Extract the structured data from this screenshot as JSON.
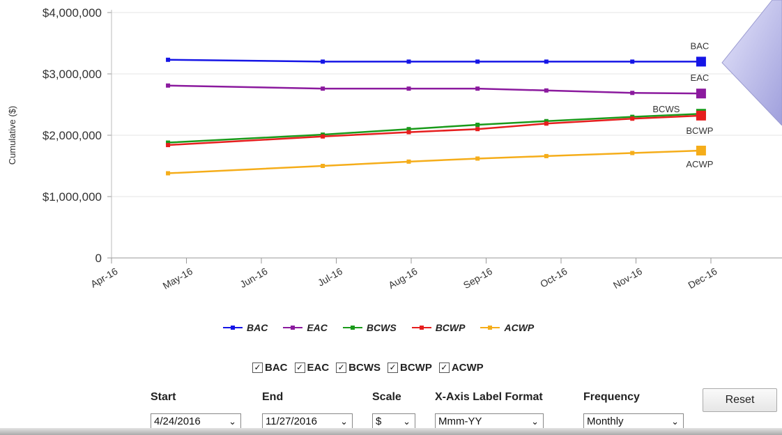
{
  "chart_data": {
    "type": "line",
    "ylabel": "Cumulative ($)",
    "xlabel": "",
    "ylim": [
      0,
      4000000
    ],
    "y_ticks": [
      "0",
      "$1,000,000",
      "$2,000,000",
      "$3,000,000",
      "$4,000,000"
    ],
    "x_ticks": [
      "Apr-16",
      "May-16",
      "Jun-16",
      "Jul-16",
      "Aug-16",
      "Sep-16",
      "Oct-16",
      "Nov-16",
      "Dec-16"
    ],
    "x": [
      "2016-04-24",
      "2016-06-26",
      "2016-07-31",
      "2016-08-28",
      "2016-09-25",
      "2016-10-30",
      "2016-11-27"
    ],
    "grid": "horizontal",
    "legend_position": "bottom",
    "series": [
      {
        "name": "BAC",
        "color": "#1515e6",
        "values": [
          3230000,
          3200000,
          3200000,
          3200000,
          3200000,
          3200000,
          3200000
        ]
      },
      {
        "name": "EAC",
        "color": "#8b1a9e",
        "values": [
          2810000,
          2760000,
          2760000,
          2760000,
          2730000,
          2690000,
          2680000
        ]
      },
      {
        "name": "BCWS",
        "color": "#1a9a1a",
        "values": [
          1880000,
          2010000,
          2100000,
          2170000,
          2230000,
          2300000,
          2350000
        ]
      },
      {
        "name": "BCWP",
        "color": "#e61e1e",
        "values": [
          1840000,
          1980000,
          2050000,
          2100000,
          2190000,
          2270000,
          2320000
        ]
      },
      {
        "name": "ACWP",
        "color": "#f5ad1a",
        "values": [
          1380000,
          1500000,
          1570000,
          1620000,
          1660000,
          1710000,
          1750000
        ]
      }
    ]
  },
  "checkboxes": [
    {
      "label": "BAC",
      "checked": true
    },
    {
      "label": "EAC",
      "checked": true
    },
    {
      "label": "BCWS",
      "checked": true
    },
    {
      "label": "BCWP",
      "checked": true
    },
    {
      "label": "ACWP",
      "checked": true
    }
  ],
  "controls": {
    "start_label": "Start",
    "start_value": "4/24/2016",
    "end_label": "End",
    "end_value": "11/27/2016",
    "scale_label": "Scale",
    "scale_value": "$",
    "xfmt_label": "X-Axis Label Format",
    "xfmt_value": "Mmm-YY",
    "freq_label": "Frequency",
    "freq_value": "Monthly",
    "reset_label": "Reset"
  }
}
